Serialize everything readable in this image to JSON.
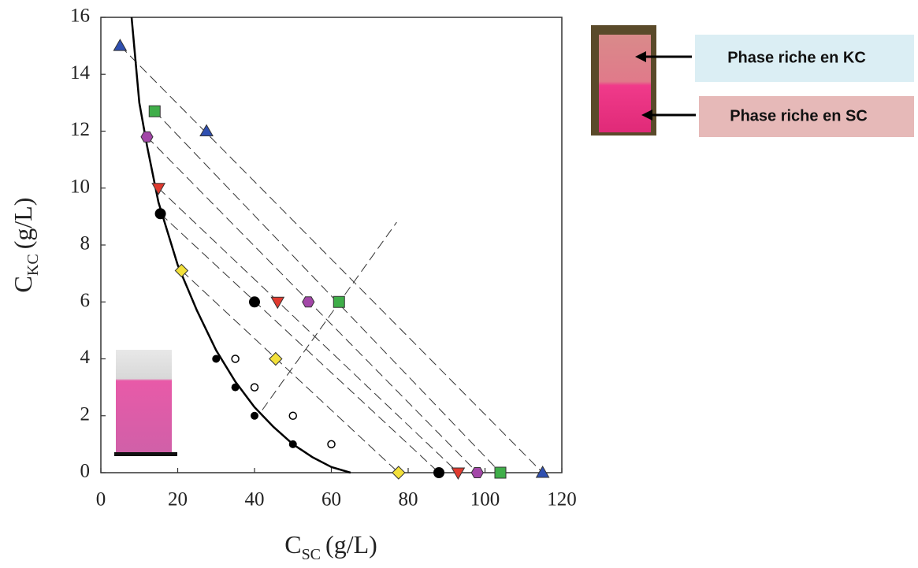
{
  "chart_data": {
    "type": "scatter",
    "x_label": {
      "symbol": "C",
      "subscript": "SC",
      "unit": "(g/L)"
    },
    "y_label": {
      "symbol": "C",
      "subscript": "KC",
      "unit": "(g/L)"
    },
    "xlim": [
      0,
      120
    ],
    "ylim": [
      0,
      16
    ],
    "xticks": [
      0,
      20,
      40,
      60,
      80,
      100,
      120
    ],
    "yticks": [
      0,
      2,
      4,
      6,
      8,
      10,
      12,
      14,
      16
    ],
    "series": [
      {
        "marker": "triangle-up",
        "color": "#2f4fb0",
        "x": [
          5,
          27.5,
          115
        ],
        "y": [
          15,
          12,
          0
        ]
      },
      {
        "marker": "square",
        "color": "#3fae49",
        "x": [
          14,
          62,
          104
        ],
        "y": [
          12.7,
          6,
          0
        ]
      },
      {
        "marker": "hexagon",
        "color": "#a347a8",
        "x": [
          12,
          54,
          98
        ],
        "y": [
          11.8,
          6,
          0
        ]
      },
      {
        "marker": "triangle-down",
        "color": "#e03a2f",
        "x": [
          15,
          46,
          93
        ],
        "y": [
          10,
          6,
          0
        ]
      },
      {
        "marker": "circle",
        "color": "#000000",
        "x": [
          15.5,
          40,
          88
        ],
        "y": [
          9.1,
          6,
          0
        ]
      },
      {
        "marker": "diamond",
        "color": "#f2e03a",
        "x": [
          21,
          45.5,
          77.5
        ],
        "y": [
          7.1,
          4,
          0
        ]
      },
      {
        "marker": "dot",
        "color": "#000000",
        "x": [
          30,
          35,
          40,
          50
        ],
        "y": [
          4,
          3,
          2,
          1
        ]
      },
      {
        "marker": "open-dot",
        "color": "#000000",
        "x": [
          35,
          40,
          50,
          60
        ],
        "y": [
          4,
          3,
          2,
          1
        ]
      }
    ],
    "tie_lines": [
      {
        "x": [
          5,
          115
        ],
        "y": [
          15,
          0
        ]
      },
      {
        "x": [
          14,
          104
        ],
        "y": [
          12.7,
          0
        ]
      },
      {
        "x": [
          12,
          98
        ],
        "y": [
          11.8,
          0
        ]
      },
      {
        "x": [
          15,
          93
        ],
        "y": [
          10,
          0
        ]
      },
      {
        "x": [
          15.5,
          88
        ],
        "y": [
          9.1,
          0
        ]
      },
      {
        "x": [
          21,
          77.5
        ],
        "y": [
          7.1,
          0
        ]
      },
      {
        "x": [
          42,
          77
        ],
        "y": [
          2.2,
          8.8
        ]
      }
    ],
    "binodal": {
      "x": [
        8,
        10,
        12,
        15,
        20,
        25,
        30,
        35,
        40,
        45,
        50,
        55,
        60,
        65
      ],
      "y": [
        16,
        13,
        11.5,
        9.5,
        7.3,
        5.7,
        4.3,
        3.2,
        2.3,
        1.6,
        1.0,
        0.55,
        0.2,
        0
      ]
    },
    "annotations": [
      {
        "text": "Phase riche en KC",
        "color": "#dbeef4"
      },
      {
        "text": "Phase riche en SC",
        "color": "#e6b9b8"
      }
    ]
  }
}
